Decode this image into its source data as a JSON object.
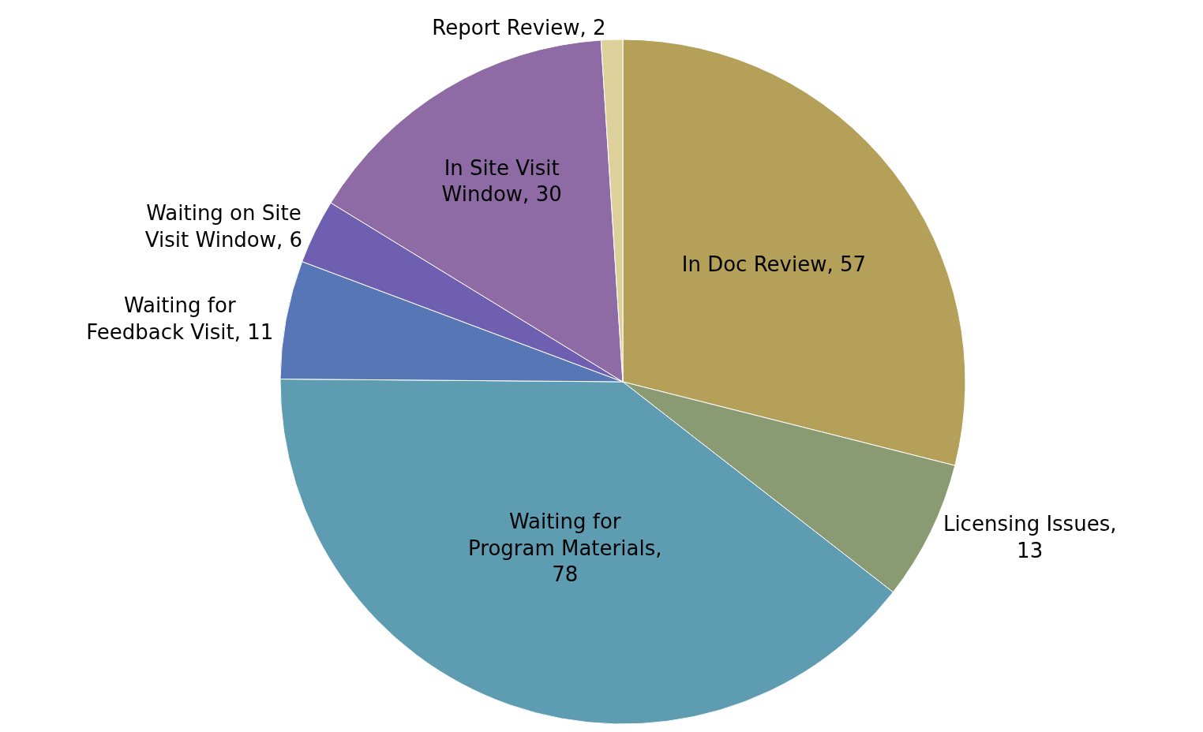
{
  "chart_data": {
    "type": "pie",
    "categories": [
      "In Doc Review, 57",
      "Licensing Issues, 13",
      "Waiting for Program Materials, 78",
      "Waiting for Feedback Visit, 11",
      "Waiting on Site Visit Window, 6",
      "In Site Visit Window, 30",
      "Report Review, 2"
    ],
    "values": [
      57,
      13,
      78,
      11,
      6,
      30,
      2
    ],
    "colors": [
      "#b5a05a",
      "#8a9a72",
      "#5e9cb2",
      "#5676b5",
      "#6e5fb0",
      "#8e6ba5",
      "#ddd09a"
    ],
    "legend": false
  }
}
